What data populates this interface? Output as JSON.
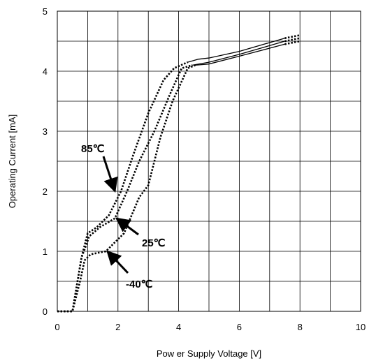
{
  "chart_data": {
    "type": "line",
    "title": "",
    "xlabel": "Pow er Supply Voltage [V]",
    "ylabel": "Operating Current [mA]",
    "xlim": [
      0,
      10
    ],
    "ylim": [
      0,
      5
    ],
    "x_ticks": [
      "0",
      "2",
      "4",
      "6",
      "8",
      "10"
    ],
    "y_ticks": [
      "0",
      "1",
      "2",
      "3",
      "4",
      "5"
    ],
    "grid": true,
    "series": [
      {
        "name": "85℃",
        "dotted_points": [
          [
            0,
            0
          ],
          [
            0.5,
            0
          ],
          [
            0.8,
            0.9
          ],
          [
            0.95,
            1.2
          ],
          [
            1.0,
            1.3
          ],
          [
            1.3,
            1.4
          ],
          [
            1.7,
            1.6
          ],
          [
            2.1,
            2.0
          ],
          [
            2.5,
            2.6
          ],
          [
            3.0,
            3.3
          ],
          [
            3.5,
            3.85
          ],
          [
            3.85,
            4.05
          ],
          [
            4.3,
            4.15
          ]
        ],
        "solid_points": [
          [
            4.3,
            4.15
          ],
          [
            4.65,
            4.2
          ],
          [
            5.0,
            4.22
          ],
          [
            6.0,
            4.33
          ],
          [
            7.5,
            4.55
          ]
        ],
        "dotted_tail": [
          [
            7.5,
            4.55
          ],
          [
            8.0,
            4.6
          ]
        ]
      },
      {
        "name": "25℃",
        "dotted_points": [
          [
            0,
            0
          ],
          [
            0.5,
            0
          ],
          [
            0.8,
            0.9
          ],
          [
            0.95,
            1.1
          ],
          [
            1.05,
            1.25
          ],
          [
            1.4,
            1.4
          ],
          [
            1.9,
            1.55
          ],
          [
            2.3,
            2.0
          ],
          [
            2.7,
            2.5
          ],
          [
            3.2,
            3.0
          ],
          [
            3.7,
            3.6
          ],
          [
            4.1,
            4.05
          ],
          [
            4.45,
            4.1
          ]
        ],
        "solid_points": [
          [
            4.45,
            4.1
          ],
          [
            5.0,
            4.15
          ],
          [
            6.0,
            4.28
          ],
          [
            7.5,
            4.5
          ]
        ],
        "dotted_tail": [
          [
            7.5,
            4.5
          ],
          [
            8.0,
            4.55
          ]
        ]
      },
      {
        "name": "-40℃",
        "dotted_points": [
          [
            0,
            0
          ],
          [
            0.5,
            0
          ],
          [
            0.75,
            0.5
          ],
          [
            0.9,
            0.85
          ],
          [
            1.1,
            0.95
          ],
          [
            1.6,
            1.0
          ],
          [
            2.2,
            1.3
          ],
          [
            2.7,
            1.9
          ],
          [
            3.0,
            2.1
          ],
          [
            3.4,
            2.9
          ],
          [
            3.8,
            3.5
          ],
          [
            4.3,
            4.05
          ],
          [
            4.55,
            4.1
          ]
        ],
        "solid_points": [
          [
            4.55,
            4.1
          ],
          [
            5.0,
            4.12
          ],
          [
            6.0,
            4.25
          ],
          [
            7.5,
            4.45
          ]
        ],
        "dotted_tail": [
          [
            7.5,
            4.45
          ],
          [
            8.0,
            4.5
          ]
        ]
      }
    ],
    "annotations": [
      {
        "label": "85℃",
        "arrow_target": [
          1.9,
          2.0
        ]
      },
      {
        "label": "25℃",
        "arrow_target": [
          1.95,
          1.55
        ]
      },
      {
        "label": "-40℃",
        "arrow_target": [
          1.65,
          1.0
        ]
      }
    ]
  }
}
